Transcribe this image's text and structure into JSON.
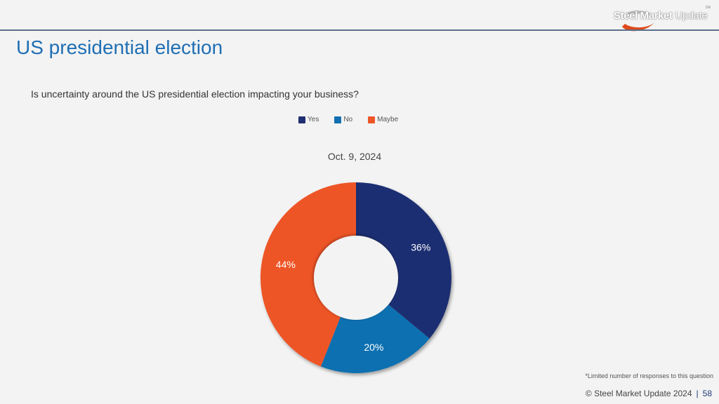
{
  "header": {
    "logo_text_bold": "Steel Market",
    "logo_text_light": "Update",
    "logo_tm": "SM"
  },
  "title": "US presidential election",
  "colors": {
    "yes": "#1f2f72",
    "no": "#1170b0",
    "maybe": "#ee5527",
    "title": "#1f6fb4"
  },
  "chart_data": {
    "type": "pie",
    "title": "Is uncertainty around the US presidential election impacting your business?",
    "subtitle": "Oct. 9, 2024",
    "legend": [
      "Yes",
      "No",
      "Maybe"
    ],
    "legend_position": "top",
    "categories": [
      "Yes",
      "No",
      "Maybe"
    ],
    "values": [
      36,
      20,
      44
    ],
    "labels": [
      "36%",
      "20%",
      "44%"
    ],
    "donut": true
  },
  "footnote": "*Limited number of responses to this question",
  "footer": {
    "copyright": "© Steel Market Update 2024",
    "separator": "|",
    "page_number": "58"
  }
}
